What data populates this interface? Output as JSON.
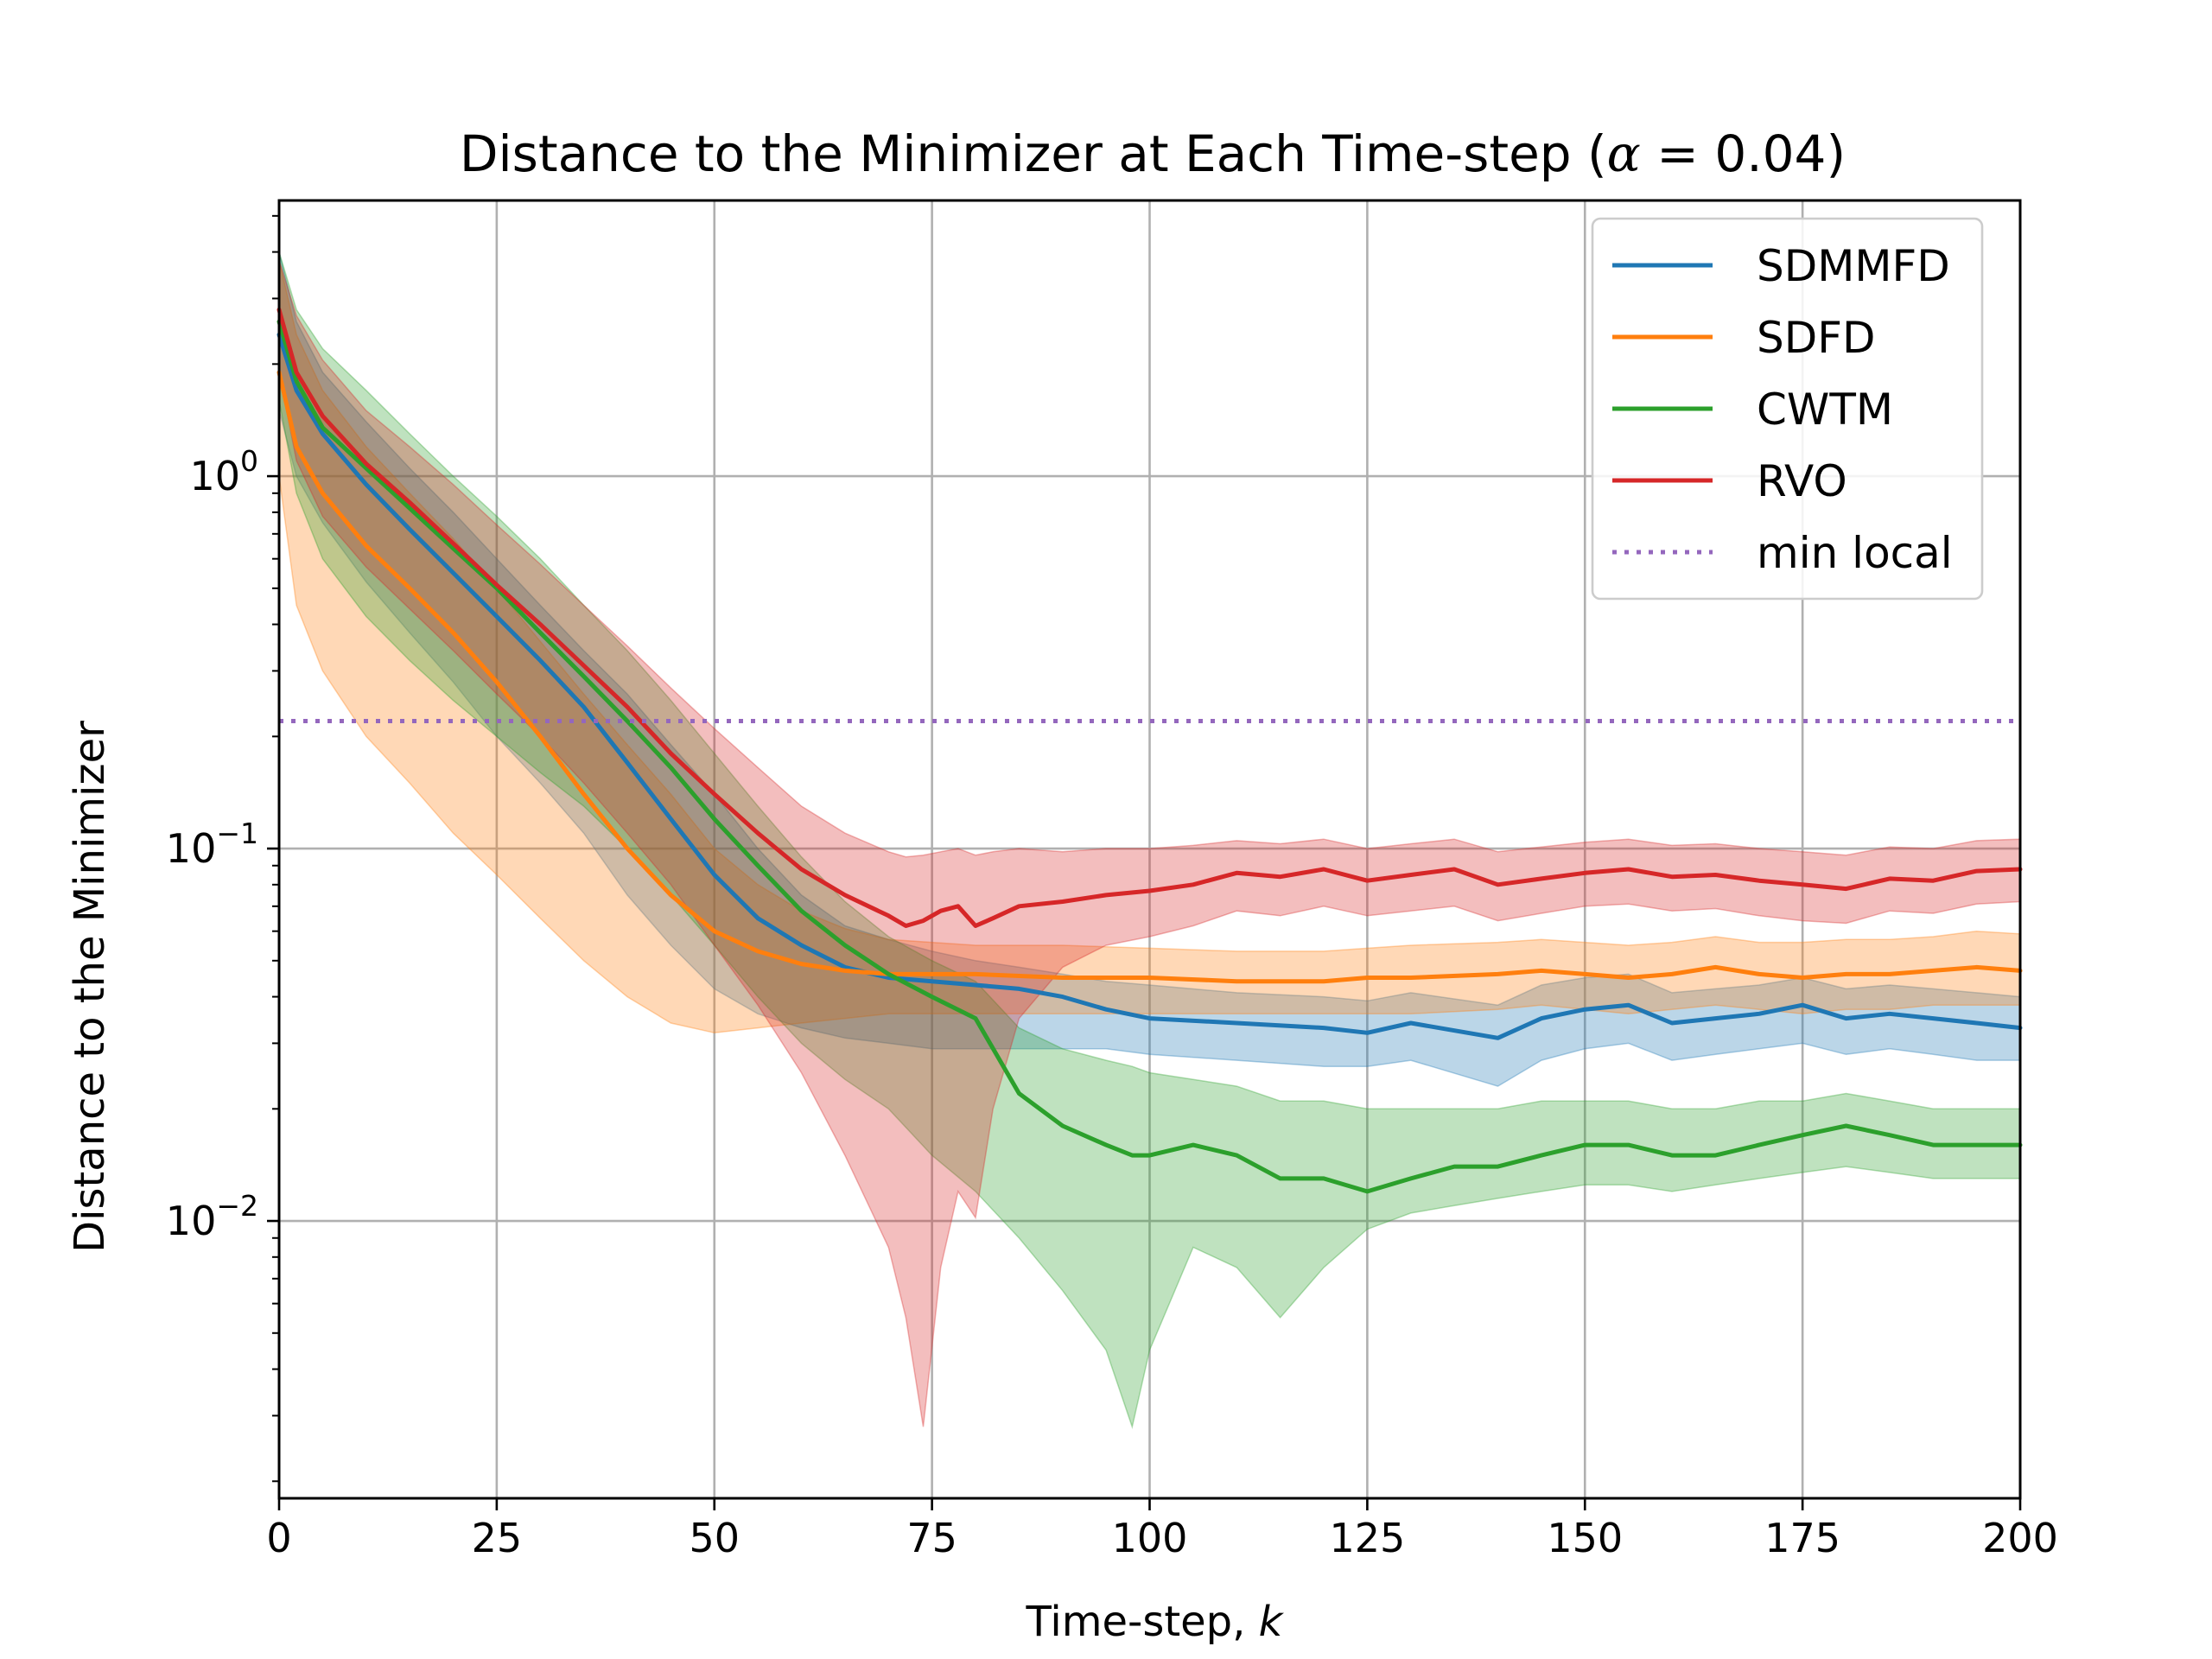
{
  "chart_data": {
    "type": "line",
    "title_main": "Distance to the Minimizer at Each Time-step (",
    "title_alpha": "α",
    "title_rest": " = 0.04)",
    "xlabel_main": "Time-step, ",
    "xlabel_var": "k",
    "ylabel": "Distance to the Minimizer",
    "x_scale": "linear",
    "y_scale": "log",
    "xlim": [
      0,
      200
    ],
    "ylim": [
      0.0018,
      5.5
    ],
    "grid": true,
    "legend_position": "top-right",
    "x_ticks": [
      0,
      25,
      50,
      75,
      100,
      125,
      150,
      175,
      200
    ],
    "x_tick_labels": [
      "0",
      "25",
      "50",
      "75",
      "100",
      "125",
      "150",
      "175",
      "200"
    ],
    "y_ticks": [
      1,
      0.1,
      0.01
    ],
    "y_tick_labels": [
      {
        "base": "10",
        "exp": "0"
      },
      {
        "base": "10",
        "exp": "−1"
      },
      {
        "base": "10",
        "exp": "−2"
      }
    ],
    "reference_line": {
      "name": "min local",
      "y": 0.22,
      "color": "#9467bd",
      "style": "dotted"
    },
    "series": [
      {
        "name": "SDMMFD",
        "color": "#1f77b4",
        "x": [
          0,
          2,
          5,
          10,
          15,
          20,
          25,
          30,
          35,
          40,
          45,
          50,
          55,
          60,
          65,
          70,
          75,
          80,
          85,
          90,
          95,
          100,
          110,
          120,
          125,
          130,
          140,
          145,
          150,
          155,
          160,
          165,
          170,
          175,
          180,
          185,
          190,
          195,
          200
        ],
        "mean": [
          2.4,
          1.7,
          1.3,
          0.95,
          0.72,
          0.55,
          0.42,
          0.32,
          0.24,
          0.17,
          0.12,
          0.085,
          0.065,
          0.055,
          0.048,
          0.045,
          0.044,
          0.043,
          0.042,
          0.04,
          0.037,
          0.035,
          0.034,
          0.033,
          0.032,
          0.034,
          0.031,
          0.035,
          0.037,
          0.038,
          0.034,
          0.035,
          0.036,
          0.038,
          0.035,
          0.036,
          0.035,
          0.034,
          0.033
        ],
        "upper": [
          4.0,
          2.6,
          1.9,
          1.4,
          1.05,
          0.8,
          0.6,
          0.45,
          0.34,
          0.26,
          0.19,
          0.14,
          0.1,
          0.075,
          0.062,
          0.057,
          0.053,
          0.05,
          0.048,
          0.046,
          0.044,
          0.043,
          0.041,
          0.04,
          0.039,
          0.041,
          0.038,
          0.043,
          0.045,
          0.046,
          0.041,
          0.042,
          0.043,
          0.045,
          0.042,
          0.043,
          0.042,
          0.041,
          0.04
        ],
        "lower": [
          1.5,
          1.0,
          0.75,
          0.52,
          0.38,
          0.28,
          0.2,
          0.15,
          0.11,
          0.075,
          0.055,
          0.042,
          0.036,
          0.033,
          0.031,
          0.03,
          0.029,
          0.029,
          0.029,
          0.029,
          0.029,
          0.028,
          0.027,
          0.026,
          0.026,
          0.027,
          0.023,
          0.027,
          0.029,
          0.03,
          0.027,
          0.028,
          0.029,
          0.03,
          0.028,
          0.029,
          0.028,
          0.027,
          0.027
        ]
      },
      {
        "name": "SDFD",
        "color": "#ff7f0e",
        "x": [
          0,
          2,
          5,
          10,
          15,
          20,
          25,
          30,
          35,
          40,
          45,
          50,
          55,
          60,
          65,
          70,
          75,
          80,
          90,
          100,
          110,
          120,
          125,
          130,
          140,
          145,
          150,
          155,
          160,
          165,
          170,
          175,
          180,
          185,
          190,
          195,
          200
        ],
        "mean": [
          1.9,
          1.2,
          0.9,
          0.65,
          0.5,
          0.38,
          0.28,
          0.2,
          0.14,
          0.1,
          0.075,
          0.06,
          0.053,
          0.049,
          0.047,
          0.046,
          0.046,
          0.046,
          0.045,
          0.045,
          0.044,
          0.044,
          0.045,
          0.045,
          0.046,
          0.047,
          0.046,
          0.045,
          0.046,
          0.048,
          0.046,
          0.045,
          0.046,
          0.046,
          0.047,
          0.048,
          0.047
        ],
        "upper": [
          3.8,
          2.4,
          1.7,
          1.2,
          0.9,
          0.68,
          0.5,
          0.36,
          0.26,
          0.19,
          0.14,
          0.1,
          0.08,
          0.068,
          0.061,
          0.057,
          0.056,
          0.055,
          0.055,
          0.054,
          0.053,
          0.053,
          0.054,
          0.055,
          0.056,
          0.057,
          0.056,
          0.055,
          0.056,
          0.058,
          0.056,
          0.056,
          0.057,
          0.057,
          0.058,
          0.06,
          0.059
        ],
        "lower": [
          1.0,
          0.45,
          0.3,
          0.2,
          0.15,
          0.11,
          0.085,
          0.065,
          0.05,
          0.04,
          0.034,
          0.032,
          0.033,
          0.034,
          0.035,
          0.036,
          0.036,
          0.036,
          0.036,
          0.036,
          0.036,
          0.036,
          0.036,
          0.036,
          0.037,
          0.038,
          0.037,
          0.036,
          0.037,
          0.038,
          0.037,
          0.036,
          0.037,
          0.037,
          0.038,
          0.038,
          0.038
        ]
      },
      {
        "name": "CWTM",
        "color": "#2ca02c",
        "x": [
          0,
          2,
          5,
          10,
          15,
          20,
          25,
          30,
          35,
          40,
          45,
          50,
          55,
          60,
          65,
          70,
          75,
          80,
          85,
          90,
          95,
          98,
          100,
          105,
          110,
          115,
          120,
          125,
          130,
          135,
          140,
          145,
          150,
          155,
          160,
          165,
          170,
          175,
          180,
          185,
          190,
          195,
          200
        ],
        "mean": [
          2.6,
          1.8,
          1.35,
          1.05,
          0.82,
          0.64,
          0.5,
          0.38,
          0.29,
          0.22,
          0.165,
          0.12,
          0.09,
          0.068,
          0.055,
          0.046,
          0.04,
          0.035,
          0.022,
          0.018,
          0.016,
          0.015,
          0.015,
          0.016,
          0.015,
          0.013,
          0.013,
          0.012,
          0.013,
          0.014,
          0.014,
          0.015,
          0.016,
          0.016,
          0.015,
          0.015,
          0.016,
          0.017,
          0.018,
          0.017,
          0.016,
          0.016,
          0.016
        ],
        "upper": [
          4.0,
          2.8,
          2.2,
          1.7,
          1.3,
          1.0,
          0.78,
          0.6,
          0.45,
          0.34,
          0.25,
          0.18,
          0.13,
          0.095,
          0.072,
          0.058,
          0.05,
          0.044,
          0.033,
          0.029,
          0.027,
          0.026,
          0.025,
          0.024,
          0.023,
          0.021,
          0.021,
          0.02,
          0.02,
          0.02,
          0.02,
          0.021,
          0.021,
          0.021,
          0.02,
          0.02,
          0.021,
          0.021,
          0.022,
          0.021,
          0.02,
          0.02,
          0.02
        ],
        "lower": [
          1.6,
          0.9,
          0.6,
          0.42,
          0.32,
          0.25,
          0.2,
          0.16,
          0.13,
          0.1,
          0.075,
          0.055,
          0.04,
          0.03,
          0.024,
          0.02,
          0.015,
          0.012,
          0.009,
          0.0065,
          0.0045,
          0.0028,
          0.0045,
          0.0085,
          0.0075,
          0.0055,
          0.0075,
          0.0095,
          0.0105,
          0.011,
          0.0115,
          0.012,
          0.0125,
          0.0125,
          0.012,
          0.0125,
          0.013,
          0.0135,
          0.014,
          0.0135,
          0.013,
          0.013,
          0.013
        ]
      },
      {
        "name": "RVO",
        "color": "#d62728",
        "x": [
          0,
          2,
          5,
          10,
          15,
          20,
          25,
          30,
          35,
          40,
          45,
          50,
          55,
          60,
          65,
          70,
          72,
          74,
          76,
          78,
          80,
          82,
          85,
          90,
          95,
          100,
          105,
          110,
          115,
          120,
          125,
          130,
          135,
          140,
          145,
          150,
          155,
          160,
          165,
          170,
          175,
          180,
          185,
          190,
          195,
          200
        ],
        "mean": [
          2.8,
          1.9,
          1.45,
          1.08,
          0.85,
          0.66,
          0.51,
          0.4,
          0.31,
          0.24,
          0.18,
          0.14,
          0.11,
          0.088,
          0.075,
          0.066,
          0.062,
          0.064,
          0.068,
          0.07,
          0.062,
          0.065,
          0.07,
          0.072,
          0.075,
          0.077,
          0.08,
          0.086,
          0.084,
          0.088,
          0.082,
          0.085,
          0.088,
          0.08,
          0.083,
          0.086,
          0.088,
          0.084,
          0.085,
          0.082,
          0.08,
          0.078,
          0.083,
          0.082,
          0.087,
          0.088
        ],
        "upper": [
          3.8,
          2.7,
          2.05,
          1.5,
          1.2,
          0.95,
          0.74,
          0.58,
          0.45,
          0.35,
          0.27,
          0.21,
          0.165,
          0.13,
          0.11,
          0.098,
          0.095,
          0.096,
          0.098,
          0.1,
          0.096,
          0.098,
          0.1,
          0.098,
          0.1,
          0.1,
          0.102,
          0.105,
          0.103,
          0.106,
          0.1,
          0.103,
          0.106,
          0.098,
          0.101,
          0.104,
          0.106,
          0.102,
          0.103,
          0.1,
          0.098,
          0.096,
          0.101,
          0.1,
          0.105,
          0.106
        ],
        "lower": [
          1.9,
          1.1,
          0.78,
          0.57,
          0.44,
          0.34,
          0.26,
          0.2,
          0.15,
          0.11,
          0.08,
          0.055,
          0.038,
          0.025,
          0.015,
          0.0085,
          0.0055,
          0.0028,
          0.0075,
          0.012,
          0.0102,
          0.02,
          0.035,
          0.048,
          0.055,
          0.058,
          0.062,
          0.068,
          0.066,
          0.07,
          0.066,
          0.068,
          0.07,
          0.064,
          0.067,
          0.07,
          0.071,
          0.068,
          0.069,
          0.066,
          0.064,
          0.063,
          0.068,
          0.067,
          0.071,
          0.072
        ]
      }
    ]
  }
}
